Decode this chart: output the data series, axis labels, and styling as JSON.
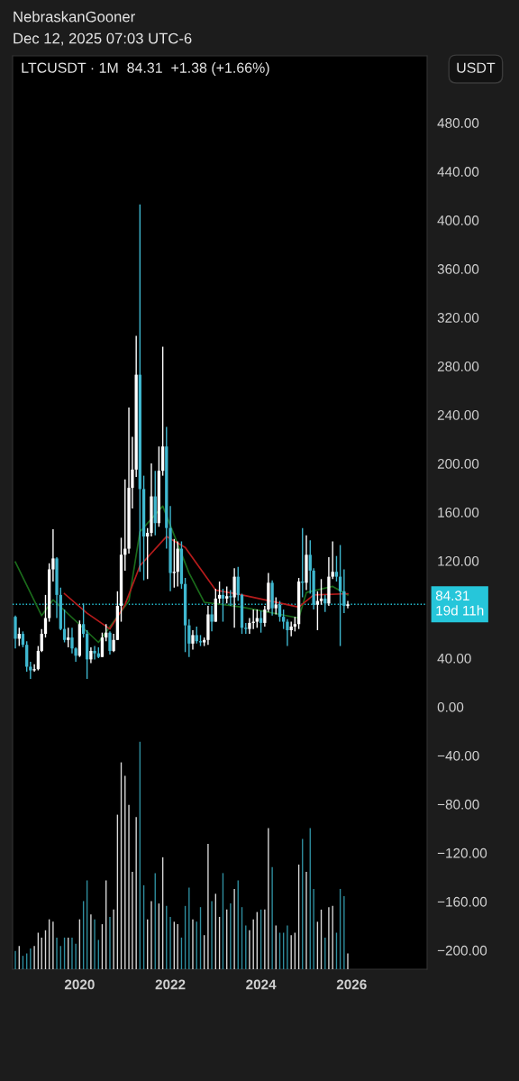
{
  "chart_data": {
    "type": "candlestick",
    "title": "LTCUSDT · 1M  84.31  +1.38 (+1.66%)",
    "ylabel": "USDT",
    "annotations": [
      "NebraskanGooner",
      "Dec 12, 2025 07:03 UTC-6"
    ],
    "x": [
      "2018-08",
      "2018-09",
      "2018-10",
      "2018-11",
      "2018-12",
      "2019-01",
      "2019-02",
      "2019-03",
      "2019-04",
      "2019-05",
      "2019-06",
      "2019-07",
      "2019-08",
      "2019-09",
      "2019-10",
      "2019-11",
      "2019-12",
      "2020-01",
      "2020-02",
      "2020-03",
      "2020-04",
      "2020-05",
      "2020-06",
      "2020-07",
      "2020-08",
      "2020-09",
      "2020-10",
      "2020-11",
      "2020-12",
      "2021-01",
      "2021-02",
      "2021-03",
      "2021-04",
      "2021-05",
      "2021-06",
      "2021-07",
      "2021-08",
      "2021-09",
      "2021-10",
      "2021-11",
      "2021-12",
      "2022-01",
      "2022-02",
      "2022-03",
      "2022-04",
      "2022-05",
      "2022-06",
      "2022-07",
      "2022-08",
      "2022-09",
      "2022-10",
      "2022-11",
      "2022-12",
      "2023-01",
      "2023-02",
      "2023-03",
      "2023-04",
      "2023-05",
      "2023-06",
      "2023-07",
      "2023-08",
      "2023-09",
      "2023-10",
      "2023-11",
      "2023-12",
      "2024-01",
      "2024-02",
      "2024-03",
      "2024-04",
      "2024-05",
      "2024-06",
      "2024-07",
      "2024-08",
      "2024-09",
      "2024-10",
      "2024-11",
      "2024-12",
      "2025-01",
      "2025-02",
      "2025-03",
      "2025-04",
      "2025-05",
      "2025-06",
      "2025-07",
      "2025-08",
      "2025-09",
      "2025-10",
      "2025-11",
      "2025-12"
    ],
    "ohlc": [
      [
        74,
        75,
        48,
        56
      ],
      [
        56,
        65,
        50,
        60
      ],
      [
        60,
        62,
        49,
        51
      ],
      [
        51,
        54,
        29,
        33
      ],
      [
        33,
        37,
        23,
        30
      ],
      [
        30,
        35,
        29,
        31
      ],
      [
        31,
        50,
        30,
        46
      ],
      [
        46,
        64,
        45,
        60
      ],
      [
        60,
        92,
        57,
        73
      ],
      [
        73,
        118,
        70,
        113
      ],
      [
        113,
        146,
        103,
        122
      ],
      [
        122,
        123,
        73,
        92
      ],
      [
        92,
        98,
        63,
        64
      ],
      [
        64,
        80,
        53,
        55
      ],
      [
        55,
        65,
        49,
        57
      ],
      [
        57,
        65,
        44,
        48
      ],
      [
        48,
        49,
        37,
        42
      ],
      [
        42,
        71,
        41,
        68
      ],
      [
        68,
        85,
        57,
        60
      ],
      [
        60,
        63,
        23,
        39
      ],
      [
        39,
        49,
        36,
        46
      ],
      [
        46,
        50,
        39,
        44
      ],
      [
        44,
        49,
        40,
        41
      ],
      [
        41,
        61,
        41,
        57
      ],
      [
        57,
        68,
        54,
        61
      ],
      [
        61,
        62,
        43,
        46
      ],
      [
        46,
        60,
        45,
        55
      ],
      [
        55,
        95,
        55,
        83
      ],
      [
        83,
        139,
        70,
        125
      ],
      [
        125,
        187,
        112,
        130
      ],
      [
        130,
        246,
        126,
        180
      ],
      [
        180,
        222,
        163,
        195
      ],
      [
        195,
        305,
        189,
        273
      ],
      [
        273,
        413,
        111,
        179
      ],
      [
        179,
        190,
        104,
        140
      ],
      [
        140,
        147,
        105,
        143
      ],
      [
        143,
        200,
        140,
        173
      ],
      [
        173,
        194,
        141,
        151
      ],
      [
        151,
        214,
        148,
        194
      ],
      [
        194,
        296,
        190,
        214
      ],
      [
        214,
        230,
        130,
        147
      ],
      [
        147,
        165,
        95,
        110
      ],
      [
        110,
        138,
        98,
        111
      ],
      [
        111,
        136,
        99,
        130
      ],
      [
        130,
        136,
        97,
        101
      ],
      [
        101,
        106,
        45,
        67
      ],
      [
        67,
        72,
        41,
        52
      ],
      [
        52,
        63,
        47,
        59
      ],
      [
        59,
        66,
        52,
        54
      ],
      [
        54,
        59,
        50,
        53
      ],
      [
        53,
        57,
        50,
        55
      ],
      [
        55,
        83,
        51,
        76
      ],
      [
        76,
        83,
        62,
        70
      ],
      [
        70,
        97,
        70,
        89
      ],
      [
        89,
        103,
        85,
        92
      ],
      [
        92,
        97,
        70,
        89
      ],
      [
        89,
        99,
        85,
        91
      ],
      [
        91,
        96,
        83,
        90
      ],
      [
        90,
        114,
        65,
        107
      ],
      [
        107,
        115,
        87,
        92
      ],
      [
        92,
        93,
        60,
        65
      ],
      [
        65,
        69,
        60,
        64
      ],
      [
        64,
        73,
        60,
        69
      ],
      [
        69,
        80,
        64,
        70
      ],
      [
        70,
        80,
        65,
        73
      ],
      [
        73,
        79,
        61,
        69
      ],
      [
        69,
        83,
        66,
        80
      ],
      [
        80,
        110,
        78,
        102
      ],
      [
        102,
        104,
        75,
        81
      ],
      [
        81,
        90,
        76,
        84
      ],
      [
        84,
        87,
        70,
        74
      ],
      [
        74,
        80,
        64,
        70
      ],
      [
        70,
        72,
        50,
        63
      ],
      [
        63,
        70,
        58,
        66
      ],
      [
        66,
        74,
        62,
        68
      ],
      [
        68,
        106,
        64,
        103
      ],
      [
        103,
        147,
        90,
        102
      ],
      [
        102,
        141,
        96,
        125
      ],
      [
        125,
        137,
        93,
        112
      ],
      [
        112,
        114,
        80,
        84
      ],
      [
        84,
        95,
        63,
        87
      ],
      [
        87,
        105,
        84,
        89
      ],
      [
        89,
        92,
        78,
        85
      ],
      [
        85,
        123,
        83,
        107
      ],
      [
        107,
        136,
        105,
        111
      ],
      [
        111,
        124,
        103,
        107
      ],
      [
        107,
        133,
        50,
        95
      ],
      [
        95,
        113,
        77,
        82.93
      ],
      [
        82.93,
        87,
        81,
        84.31
      ]
    ],
    "colors": [
      "#3fb8d0",
      "#ffffff",
      "#3fb8d0",
      "#3fb8d0",
      "#3fb8d0",
      "#ffffff",
      "#ffffff",
      "#ffffff",
      "#ffffff",
      "#ffffff",
      "#ffffff",
      "#3fb8d0",
      "#3fb8d0",
      "#3fb8d0",
      "#ffffff",
      "#3fb8d0",
      "#3fb8d0",
      "#ffffff",
      "#3fb8d0",
      "#3fb8d0",
      "#ffffff",
      "#3fb8d0",
      "#3fb8d0",
      "#ffffff",
      "#ffffff",
      "#3fb8d0",
      "#ffffff",
      "#ffffff",
      "#ffffff",
      "#ffffff",
      "#ffffff",
      "#ffffff",
      "#ffffff",
      "#3fb8d0",
      "#3fb8d0",
      "#ffffff",
      "#ffffff",
      "#3fb8d0",
      "#ffffff",
      "#ffffff",
      "#3fb8d0",
      "#3fb8d0",
      "#ffffff",
      "#ffffff",
      "#3fb8d0",
      "#3fb8d0",
      "#3fb8d0",
      "#ffffff",
      "#3fb8d0",
      "#3fb8d0",
      "#ffffff",
      "#ffffff",
      "#3fb8d0",
      "#ffffff",
      "#ffffff",
      "#3fb8d0",
      "#ffffff",
      "#3fb8d0",
      "#ffffff",
      "#3fb8d0",
      "#3fb8d0",
      "#3fb8d0",
      "#ffffff",
      "#ffffff",
      "#ffffff",
      "#3fb8d0",
      "#ffffff",
      "#ffffff",
      "#3fb8d0",
      "#ffffff",
      "#3fb8d0",
      "#3fb8d0",
      "#3fb8d0",
      "#ffffff",
      "#ffffff",
      "#ffffff",
      "#3fb8d0",
      "#ffffff",
      "#3fb8d0",
      "#3fb8d0",
      "#ffffff",
      "#ffffff",
      "#3fb8d0",
      "#ffffff",
      "#ffffff",
      "#3fb8d0",
      "#3fb8d0",
      "#3fb8d0",
      "#ffffff"
    ],
    "series": [
      {
        "type": "line",
        "color": "#1b6b1b",
        "x": [
          "2018-08",
          "2019-03",
          "2019-06",
          "2020-06",
          "2021-02",
          "2021-05",
          "2021-11",
          "2022-06",
          "2022-10",
          "2023-08",
          "2024-11",
          "2025-01",
          "2025-08",
          "2025-12"
        ],
        "values": [
          119,
          75,
          88,
          53,
          87,
          144,
          165,
          110,
          86,
          82,
          73,
          94,
          99,
          92
        ]
      },
      {
        "type": "line",
        "color": "#b71c1c",
        "x": [
          "2019-09",
          "2020-03",
          "2020-09",
          "2021-01",
          "2021-05",
          "2021-12",
          "2022-05",
          "2023-01",
          "2023-08",
          "2024-11",
          "2025-03",
          "2025-12"
        ],
        "values": [
          93,
          77,
          64,
          84,
          116,
          140,
          131,
          96,
          92,
          82,
          92,
          93
        ]
      },
      {
        "type": "bar",
        "values": [
          15,
          19,
          11,
          13,
          17,
          19,
          30,
          26,
          32,
          41,
          39,
          26,
          19,
          26,
          26,
          26,
          21,
          41,
          56,
          73,
          45,
          41,
          24,
          37,
          73,
          43,
          49,
          127,
          170,
          159,
          135,
          80,
          125,
          187,
          69,
          41,
          56,
          79,
          54,
          92,
          52,
          43,
          39,
          37,
          26,
          52,
          67,
          41,
          39,
          51,
          28,
          103,
          56,
          62,
          43,
          79,
          49,
          54,
          66,
          73,
          51,
          36,
          32,
          41,
          47,
          49,
          49,
          116,
          84,
          36,
          30,
          30,
          36,
          28,
          30,
          86,
          107,
          80,
          116,
          66,
          39,
          49,
          26,
          51,
          52,
          30,
          66,
          60,
          13
        ],
        "base": [
          -215.6,
          -215.6,
          -215.6,
          -215.6,
          -215.6,
          -215.6,
          -215.6,
          -215.6,
          -215.6,
          -215.6,
          -215.6,
          -215.6,
          -215.6,
          -215.6,
          -215.6,
          -215.6,
          -215.6,
          -215.6,
          -215.6,
          -215.6,
          -215.6,
          -215.6,
          -215.6,
          -215.6,
          -215.6,
          -215.6,
          -215.6,
          -215.6,
          -215.6,
          -215.6,
          -215.6,
          -215.6,
          -215.6,
          -215.6,
          -215.6,
          -215.6,
          -215.6,
          -215.6,
          -215.6,
          -215.6,
          -215.6,
          -215.6,
          -215.6,
          -215.6,
          -215.6,
          -215.6,
          -215.6,
          -215.6,
          -215.6,
          -215.6,
          -215.6,
          -215.6,
          -215.6,
          -215.6,
          -215.6,
          -215.6,
          -215.6,
          -215.6,
          -215.6,
          -215.6,
          -215.6,
          -215.6,
          -215.6,
          -215.6,
          -215.6,
          -215.6,
          -215.6,
          -215.6,
          -215.6,
          -215.6,
          -215.6,
          -215.6,
          -215.6,
          -215.6,
          -215.6,
          -215.6,
          -215.6,
          -215.6,
          -215.6,
          -215.6,
          -215.6,
          -215.6,
          -215.6,
          -215.6,
          -215.6,
          -215.6,
          -215.6,
          -215.6,
          -215.6
        ],
        "colors": [
          "#2f8fa0",
          "#d8d8d8",
          "#2f8fa0",
          "#2f8fa0",
          "#2f8fa0",
          "#d8d8d8",
          "#d8d8d8",
          "#d8d8d8",
          "#d8d8d8",
          "#d8d8d8",
          "#d8d8d8",
          "#2f8fa0",
          "#2f8fa0",
          "#2f8fa0",
          "#d8d8d8",
          "#2f8fa0",
          "#2f8fa0",
          "#d8d8d8",
          "#2f8fa0",
          "#2f8fa0",
          "#d8d8d8",
          "#2f8fa0",
          "#2f8fa0",
          "#d8d8d8",
          "#d8d8d8",
          "#2f8fa0",
          "#d8d8d8",
          "#d8d8d8",
          "#d8d8d8",
          "#d8d8d8",
          "#d8d8d8",
          "#d8d8d8",
          "#d8d8d8",
          "#2f8fa0",
          "#2f8fa0",
          "#d8d8d8",
          "#d8d8d8",
          "#2f8fa0",
          "#d8d8d8",
          "#d8d8d8",
          "#2f8fa0",
          "#2f8fa0",
          "#d8d8d8",
          "#d8d8d8",
          "#2f8fa0",
          "#2f8fa0",
          "#2f8fa0",
          "#d8d8d8",
          "#2f8fa0",
          "#2f8fa0",
          "#d8d8d8",
          "#d8d8d8",
          "#2f8fa0",
          "#d8d8d8",
          "#d8d8d8",
          "#2f8fa0",
          "#d8d8d8",
          "#2f8fa0",
          "#d8d8d8",
          "#2f8fa0",
          "#2f8fa0",
          "#2f8fa0",
          "#d8d8d8",
          "#d8d8d8",
          "#d8d8d8",
          "#2f8fa0",
          "#d8d8d8",
          "#d8d8d8",
          "#2f8fa0",
          "#d8d8d8",
          "#2f8fa0",
          "#2f8fa0",
          "#2f8fa0",
          "#d8d8d8",
          "#d8d8d8",
          "#d8d8d8",
          "#2f8fa0",
          "#d8d8d8",
          "#2f8fa0",
          "#2f8fa0",
          "#d8d8d8",
          "#d8d8d8",
          "#2f8fa0",
          "#d8d8d8",
          "#d8d8d8",
          "#2f8fa0",
          "#2f8fa0",
          "#2f8fa0",
          "#d8d8d8"
        ]
      }
    ],
    "ref_lines": [
      {
        "axis": "y",
        "value": 84.31,
        "label": "84.31\n19d 11h",
        "color": "#26c6da",
        "line_style": "dotted"
      }
    ],
    "xlim": [
      "2018-07-10",
      "2027-09-01"
    ],
    "xticks": [
      "2020",
      "2022",
      "2024",
      "2026"
    ],
    "ylim": [
      -215.6,
      535
    ],
    "yticks": [
      {
        "value": 480,
        "label": "480.00"
      },
      {
        "value": 440,
        "label": "440.00"
      },
      {
        "value": 400,
        "label": "400.00"
      },
      {
        "value": 360,
        "label": "360.00"
      },
      {
        "value": 320,
        "label": "320.00"
      },
      {
        "value": 280,
        "label": "280.00"
      },
      {
        "value": 240,
        "label": "240.00"
      },
      {
        "value": 200,
        "label": "200.00"
      },
      {
        "value": 160,
        "label": "160.00"
      },
      {
        "value": 120,
        "label": "120.00"
      },
      {
        "value": 40,
        "label": "40.00"
      },
      {
        "value": 0,
        "label": "0.00"
      },
      {
        "value": -40,
        "label": "−40.00"
      },
      {
        "value": -80,
        "label": "−80.00"
      },
      {
        "value": -120,
        "label": "−120.00"
      },
      {
        "value": -160,
        "label": "−160.00"
      },
      {
        "value": -200,
        "label": "−200.00"
      }
    ],
    "grid": false
  }
}
